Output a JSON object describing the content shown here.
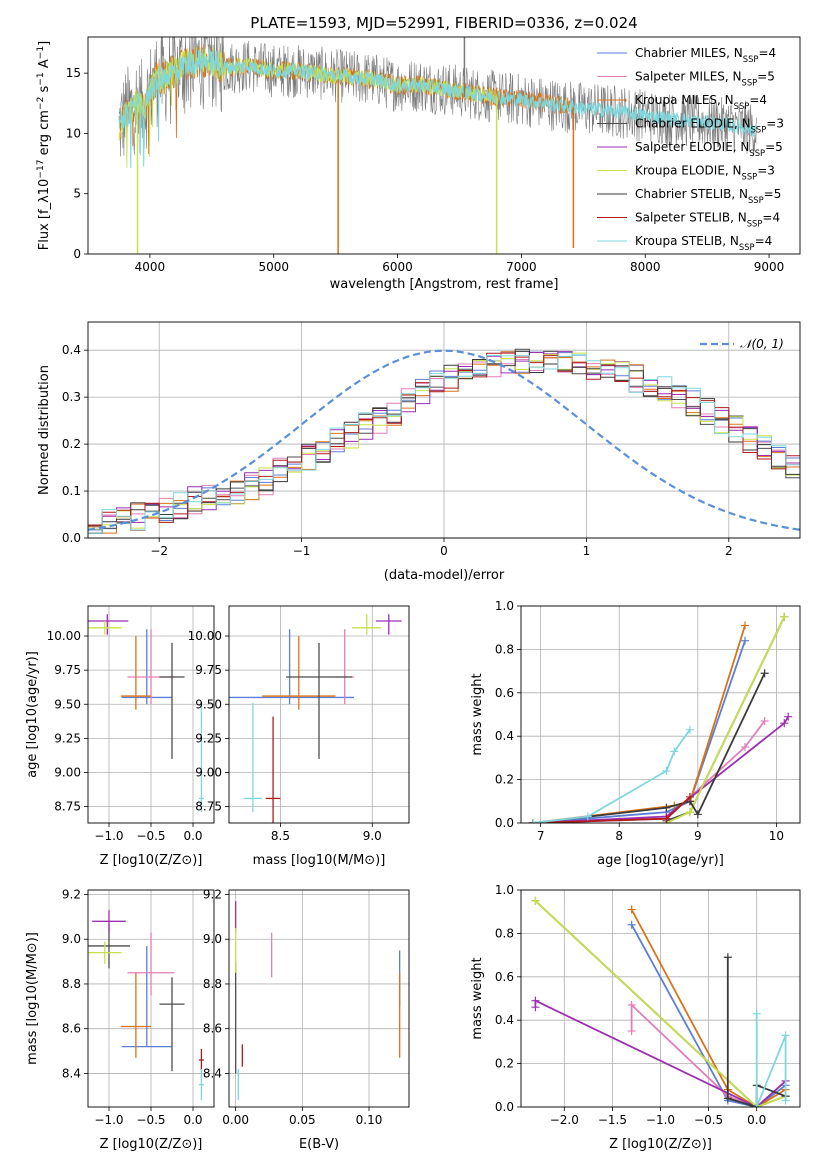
{
  "figure_title": "PLATE=1593, MJD=52991, FIBERID=0336, z=0.024",
  "colors": {
    "chabrier_miles": "#5b7fd6",
    "salpeter_miles": "#e27fb8",
    "kroupa_miles": "#d8731a",
    "chabrier_elodie": "#4d4d4d",
    "salpeter_elodie": "#9b2fb0",
    "kroupa_elodie": "#c8e04a",
    "chabrier_stelib": "#3a3a3a",
    "salpeter_stelib": "#b01c1c",
    "kroupa_stelib": "#7fd7dc",
    "normal": "#5b8fd6",
    "spectrum_dark": "#7a7a7a",
    "spectrum_light": "#7fd7dc"
  },
  "chart_data": [
    {
      "id": "spectrum",
      "type": "line",
      "title": "PLATE=1593, MJD=52991, FIBERID=0336, z=0.024",
      "xlabel": "wavelength [Angstrom, rest frame]",
      "ylabel": "Flux [f_λ10^-17 erg cm^-2 s^-1 A^-1]",
      "xlim": [
        3500,
        9250
      ],
      "ylim": [
        0,
        18
      ],
      "xticks": [
        4000,
        5000,
        6000,
        7000,
        8000,
        9000
      ],
      "yticks": [
        0,
        5,
        10,
        15
      ],
      "grid": false,
      "legend_position": "top-right",
      "legend": [
        {
          "name": "Chabrier MILES, N_SSP=4",
          "color_key": "chabrier_miles"
        },
        {
          "name": "Salpeter MILES, N_SSP=5",
          "color_key": "salpeter_miles"
        },
        {
          "name": "Kroupa MILES, N_SSP=4",
          "color_key": "kroupa_miles"
        },
        {
          "name": "Chabrier ELODIE, N_SSP=3",
          "color_key": "chabrier_elodie"
        },
        {
          "name": "Salpeter ELODIE, N_SSP=5",
          "color_key": "salpeter_elodie"
        },
        {
          "name": "Kroupa ELODIE, N_SSP=3",
          "color_key": "kroupa_elodie"
        },
        {
          "name": "Chabrier STELIB, N_SSP=5",
          "color_key": "chabrier_stelib"
        },
        {
          "name": "Salpeter STELIB, N_SSP=4",
          "color_key": "salpeter_stelib"
        },
        {
          "name": "Kroupa STELIB, N_SSP=4",
          "color_key": "kroupa_stelib"
        }
      ],
      "continuum": {
        "x": [
          3750,
          3800,
          3850,
          3900,
          3950,
          4000,
          4050,
          4100,
          4150,
          4200,
          4300,
          4400,
          4500,
          4600,
          4800,
          5000,
          5200,
          5500,
          5800,
          6000,
          6200,
          6500,
          6800,
          7000,
          7200,
          7400,
          7600,
          7800,
          8000,
          8200,
          8400,
          8600,
          8800,
          8900
        ],
        "y": [
          10.5,
          11.5,
          12.0,
          12.5,
          12.0,
          13.5,
          14.5,
          14.5,
          15.0,
          15.2,
          15.8,
          16.0,
          16.0,
          15.5,
          15.6,
          15.2,
          15.2,
          14.8,
          14.5,
          14.0,
          14.0,
          13.5,
          13.0,
          12.8,
          12.5,
          12.2,
          12.0,
          11.8,
          11.5,
          11.2,
          11.0,
          10.8,
          10.5,
          10.3
        ]
      },
      "spikes": [
        {
          "x": 3900,
          "ymin": 0,
          "ymax": 12,
          "color_key": "kroupa_elodie"
        },
        {
          "x": 5520,
          "ymin": 0,
          "ymax": 14.5,
          "color_key": "kroupa_miles"
        },
        {
          "x": 6800,
          "ymin": 0,
          "ymax": 13,
          "color_key": "kroupa_elodie"
        },
        {
          "x": 7420,
          "ymin": 0.5,
          "ymax": 12.2,
          "color_key": "kroupa_miles"
        },
        {
          "x": 6540,
          "ymin": 13.0,
          "ymax": 18,
          "color_key": "spectrum_dark"
        }
      ]
    },
    {
      "id": "residuals",
      "type": "line",
      "xlabel": "(data-model)/error",
      "ylabel": "Normed distribution",
      "xlim": [
        -2.5,
        2.5
      ],
      "ylim": [
        0,
        0.46
      ],
      "xticks": [
        -2,
        -1,
        0,
        1,
        2
      ],
      "yticks": [
        0.0,
        0.1,
        0.2,
        0.3,
        0.4
      ],
      "grid": true,
      "legend_position": "top-right",
      "legend": [
        {
          "name": "𝒩(0, 1)",
          "color_key": "normal"
        }
      ],
      "bin_width": 0.1,
      "bin_start": -2.5,
      "histogram_envelope": [
        0.03,
        0.035,
        0.04,
        0.045,
        0.05,
        0.06,
        0.07,
        0.08,
        0.085,
        0.09,
        0.1,
        0.11,
        0.12,
        0.14,
        0.155,
        0.17,
        0.19,
        0.21,
        0.22,
        0.24,
        0.25,
        0.27,
        0.29,
        0.31,
        0.33,
        0.34,
        0.35,
        0.36,
        0.37,
        0.37,
        0.38,
        0.38,
        0.38,
        0.38,
        0.37,
        0.36,
        0.36,
        0.35,
        0.34,
        0.33,
        0.32,
        0.3,
        0.29,
        0.27,
        0.25,
        0.23,
        0.21,
        0.19,
        0.17,
        0.15
      ]
    },
    {
      "id": "age-vs-Z",
      "type": "scatter",
      "xlabel": "Z [log10(Z/Z⊙)]",
      "ylabel": "age [log10(age/yr)]",
      "xlim": [
        -1.25,
        0.25
      ],
      "ylim": [
        8.63,
        10.22
      ],
      "xticks": [
        -1.0,
        -0.5,
        0.0
      ],
      "yticks": [
        8.75,
        9.0,
        9.25,
        9.5,
        9.75,
        10.0
      ],
      "grid": true,
      "points": [
        {
          "x": -0.55,
          "y": 9.55,
          "xerr": 0.3,
          "yerr": [
            0.05,
            0.5
          ],
          "color_key": "chabrier_miles"
        },
        {
          "x": -0.5,
          "y": 9.7,
          "xerr": 0.28,
          "yerr": [
            0.2,
            0.35
          ],
          "color_key": "salpeter_miles"
        },
        {
          "x": -0.68,
          "y": 9.56,
          "xerr": 0.18,
          "yerr": [
            0.1,
            0.44
          ],
          "color_key": "kroupa_miles"
        },
        {
          "x": -0.25,
          "y": 9.7,
          "xerr": 0.15,
          "yerr": [
            0.6,
            0.25
          ],
          "color_key": "chabrier_elodie"
        },
        {
          "x": -1.02,
          "y": 10.11,
          "xerr": 0.25,
          "yerr": [
            0.1,
            0.05
          ],
          "color_key": "salpeter_elodie"
        },
        {
          "x": -1.05,
          "y": 10.06,
          "xerr": 0.2,
          "yerr": [
            0.05,
            0.05
          ],
          "color_key": "kroupa_elodie"
        },
        {
          "x": 0.1,
          "y": 8.81,
          "xerr": 0.03,
          "yerr": [
            0.1,
            0.7
          ],
          "color_key": "kroupa_stelib"
        }
      ]
    },
    {
      "id": "age-vs-mass",
      "type": "scatter",
      "xlabel": "mass [log10(M/M⊙)]",
      "xlim": [
        8.22,
        9.2
      ],
      "ylim": [
        8.63,
        10.22
      ],
      "xticks": [
        8.5,
        9.0
      ],
      "yticks": [
        8.75,
        9.0,
        9.25,
        9.5,
        9.75,
        10.0
      ],
      "grid": true,
      "points": [
        {
          "x": 8.55,
          "y": 9.55,
          "xerr": 0.35,
          "yerr": [
            0.05,
            0.5
          ],
          "color_key": "chabrier_miles"
        },
        {
          "x": 8.85,
          "y": 9.7,
          "xerr": 0.05,
          "yerr": [
            0.2,
            0.35
          ],
          "color_key": "salpeter_miles"
        },
        {
          "x": 8.6,
          "y": 9.56,
          "xerr": 0.2,
          "yerr": [
            0.1,
            0.44
          ],
          "color_key": "kroupa_miles"
        },
        {
          "x": 8.71,
          "y": 9.7,
          "xerr": 0.18,
          "yerr": [
            0.6,
            0.25
          ],
          "color_key": "chabrier_elodie"
        },
        {
          "x": 9.09,
          "y": 10.11,
          "xerr": 0.07,
          "yerr": [
            0.1,
            0.05
          ],
          "color_key": "salpeter_elodie"
        },
        {
          "x": 8.97,
          "y": 10.06,
          "xerr": 0.08,
          "yerr": [
            0.05,
            0.1
          ],
          "color_key": "kroupa_elodie"
        },
        {
          "x": 8.46,
          "y": 8.81,
          "xerr": 0.04,
          "yerr": [
            0.2,
            0.6
          ],
          "color_key": "salpeter_stelib"
        },
        {
          "x": 8.35,
          "y": 8.81,
          "xerr": 0.05,
          "yerr": [
            0.1,
            0.7
          ],
          "color_key": "kroupa_stelib"
        }
      ]
    },
    {
      "id": "weight-vs-age",
      "type": "line",
      "xlabel": "age [log10(age/yr)]",
      "ylabel": "mass weight",
      "xlim": [
        6.75,
        10.3
      ],
      "ylim": [
        0,
        1.0
      ],
      "xticks": [
        7,
        8,
        9,
        10
      ],
      "yticks": [
        0.0,
        0.2,
        0.4,
        0.6,
        0.8,
        1.0
      ],
      "grid": true,
      "series": [
        {
          "color_key": "chabrier_miles",
          "x": [
            6.9,
            8.6,
            8.9,
            9.6
          ],
          "y": [
            0.0,
            0.05,
            0.1,
            0.84
          ]
        },
        {
          "color_key": "salpeter_miles",
          "x": [
            6.9,
            8.6,
            9.6,
            9.85
          ],
          "y": [
            0.0,
            0.02,
            0.35,
            0.47
          ]
        },
        {
          "color_key": "kroupa_miles",
          "x": [
            6.9,
            8.7,
            8.9,
            9.6
          ],
          "y": [
            0.0,
            0.08,
            0.1,
            0.91
          ]
        },
        {
          "color_key": "chabrier_elodie",
          "x": [
            8.6,
            8.9,
            10.1
          ],
          "y": [
            0.01,
            0.05,
            0.95
          ]
        },
        {
          "color_key": "salpeter_elodie",
          "x": [
            6.9,
            8.6,
            10.1,
            10.15
          ],
          "y": [
            0.0,
            0.03,
            0.46,
            0.49
          ]
        },
        {
          "color_key": "kroupa_elodie",
          "x": [
            8.6,
            8.9,
            10.1
          ],
          "y": [
            0.0,
            0.05,
            0.95
          ]
        },
        {
          "color_key": "chabrier_stelib",
          "x": [
            6.9,
            8.6,
            8.9,
            9.0,
            9.85
          ],
          "y": [
            0.0,
            0.07,
            0.1,
            0.04,
            0.69
          ]
        },
        {
          "color_key": "salpeter_stelib",
          "x": [
            6.9,
            8.6,
            8.9
          ],
          "y": [
            0.0,
            0.02,
            0.12
          ]
        },
        {
          "color_key": "kroupa_stelib",
          "x": [
            6.9,
            7.6,
            8.6,
            8.7,
            8.9
          ],
          "y": [
            0.0,
            0.03,
            0.24,
            0.33,
            0.43
          ]
        }
      ]
    },
    {
      "id": "mass-vs-Z",
      "type": "scatter",
      "xlabel": "Z [log10(Z/Z⊙)]",
      "ylabel": "mass [log10(M/M⊙)]",
      "xlim": [
        -1.25,
        0.25
      ],
      "ylim": [
        8.25,
        9.22
      ],
      "xticks": [
        -1.0,
        -0.5,
        0.0
      ],
      "yticks": [
        8.4,
        8.6,
        8.8,
        9.0,
        9.2
      ],
      "grid": true,
      "points": [
        {
          "x": -0.55,
          "y": 8.52,
          "xerr": 0.3,
          "yerr": [
            0.0,
            0.45
          ],
          "color_key": "chabrier_miles"
        },
        {
          "x": -0.5,
          "y": 8.85,
          "xerr": 0.28,
          "yerr": [
            0.1,
            0.18
          ],
          "color_key": "salpeter_miles"
        },
        {
          "x": -0.68,
          "y": 8.61,
          "xerr": 0.18,
          "yerr": [
            0.14,
            0.24
          ],
          "color_key": "kroupa_miles"
        },
        {
          "x": -0.25,
          "y": 8.71,
          "xerr": 0.15,
          "yerr": [
            0.3,
            0.12
          ],
          "color_key": "chabrier_elodie"
        },
        {
          "x": -1.0,
          "y": 8.97,
          "xerr": 0.25,
          "yerr": [
            0.1,
            0.1
          ],
          "color_key": "chabrier_elodie"
        },
        {
          "x": -1.0,
          "y": 9.08,
          "xerr": 0.2,
          "yerr": [
            0.05,
            0.05
          ],
          "color_key": "salpeter_elodie"
        },
        {
          "x": -1.05,
          "y": 8.94,
          "xerr": 0.2,
          "yerr": [
            0.05,
            0.05
          ],
          "color_key": "kroupa_elodie"
        },
        {
          "x": 0.1,
          "y": 8.46,
          "xerr": 0.03,
          "yerr": [
            0.05,
            0.05
          ],
          "color_key": "salpeter_stelib"
        },
        {
          "x": 0.1,
          "y": 8.35,
          "xerr": 0.03,
          "yerr": [
            0.07,
            0.07
          ],
          "color_key": "kroupa_stelib"
        }
      ]
    },
    {
      "id": "mass-vs-EBV",
      "type": "scatter",
      "xlabel": "E(B-V)",
      "xlim": [
        -0.005,
        0.13
      ],
      "ylim": [
        8.25,
        9.22
      ],
      "xticks": [
        0.0,
        0.05,
        0.1
      ],
      "yticks": [
        8.4,
        8.6,
        8.8,
        9.0,
        9.2
      ],
      "grid": true,
      "points": [
        {
          "x": 0.123,
          "y": 8.8,
          "yerr": [
            0.1,
            0.15
          ],
          "color_key": "chabrier_miles"
        },
        {
          "x": 0.027,
          "y": 8.93,
          "yerr": [
            0.1,
            0.1
          ],
          "color_key": "salpeter_miles"
        },
        {
          "x": 0.123,
          "y": 8.6,
          "yerr": [
            0.13,
            0.25
          ],
          "color_key": "kroupa_miles"
        },
        {
          "x": 0.0,
          "y": 8.7,
          "yerr": [
            0.3,
            0.2
          ],
          "color_key": "chabrier_elodie"
        },
        {
          "x": 0.0,
          "y": 9.1,
          "yerr": [
            0.07,
            0.07
          ],
          "color_key": "salpeter_elodie"
        },
        {
          "x": 0.0,
          "y": 8.95,
          "yerr": [
            0.1,
            0.1
          ],
          "color_key": "kroupa_elodie"
        },
        {
          "x": 0.005,
          "y": 8.48,
          "yerr": [
            0.05,
            0.05
          ],
          "color_key": "salpeter_stelib"
        },
        {
          "x": 0.002,
          "y": 8.35,
          "yerr": [
            0.07,
            0.07
          ],
          "color_key": "kroupa_stelib"
        }
      ]
    },
    {
      "id": "weight-vs-Z",
      "type": "line",
      "xlabel": "Z [log10(Z/Z⊙)]",
      "ylabel": "mass weight",
      "xlim": [
        -2.45,
        0.45
      ],
      "ylim": [
        0,
        1.0
      ],
      "xticks": [
        -2.0,
        -1.5,
        -1.0,
        -0.5,
        0.0
      ],
      "yticks": [
        0.0,
        0.2,
        0.4,
        0.6,
        0.8,
        1.0
      ],
      "grid": true,
      "series": [
        {
          "color_key": "chabrier_miles",
          "x": [
            -1.3,
            -0.3,
            0.0,
            0.3
          ],
          "y": [
            0.84,
            0.03,
            0.0,
            0.1
          ]
        },
        {
          "color_key": "salpeter_miles",
          "x": [
            -1.3,
            -1.3,
            -0.3,
            0.0,
            0.3
          ],
          "y": [
            0.35,
            0.47,
            0.05,
            0.0,
            0.12
          ]
        },
        {
          "color_key": "kroupa_miles",
          "x": [
            -1.3,
            -0.3,
            0.0,
            0.3
          ],
          "y": [
            0.91,
            0.08,
            0.0,
            0.08
          ]
        },
        {
          "color_key": "chabrier_elodie",
          "x": [
            -2.3,
            0.0,
            0.3
          ],
          "y": [
            0.95,
            0.0,
            0.05
          ]
        },
        {
          "color_key": "salpeter_elodie",
          "x": [
            -2.3,
            -2.3,
            0.0,
            0.3
          ],
          "y": [
            0.46,
            0.49,
            0.0,
            0.12
          ]
        },
        {
          "color_key": "kroupa_elodie",
          "x": [
            -2.3,
            0.0,
            0.3
          ],
          "y": [
            0.95,
            0.0,
            0.05
          ]
        },
        {
          "color_key": "chabrier_stelib",
          "x": [
            -0.3,
            -0.3,
            0.0,
            0.0,
            0.3
          ],
          "y": [
            0.69,
            0.04,
            0.0,
            0.1,
            0.05
          ]
        },
        {
          "color_key": "kroupa_stelib",
          "x": [
            0.0,
            0.0,
            0.3,
            0.3
          ],
          "y": [
            0.43,
            0.0,
            0.33,
            0.03
          ]
        }
      ]
    }
  ]
}
